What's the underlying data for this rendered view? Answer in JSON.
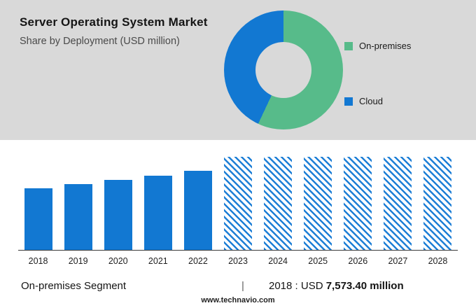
{
  "colors": {
    "header_bg": "#d9d9d9",
    "green": "#57bb8a",
    "blue": "#1278d2"
  },
  "header": {
    "title": "Server Operating System Market",
    "subtitle": "Share by Deployment (USD million)"
  },
  "chart_data": [
    {
      "type": "pie",
      "subtype": "donut",
      "title": "Share by Deployment (USD million)",
      "labels": [
        "On-premises",
        "Cloud"
      ],
      "values": [
        57,
        43
      ],
      "value_unit": "percent, estimated from arc angles",
      "colors": [
        "#57bb8a",
        "#1278d2"
      ],
      "legend_position": "right",
      "start_angle_deg": 0,
      "direction": "clockwise"
    },
    {
      "type": "bar",
      "categories": [
        "2018",
        "2019",
        "2020",
        "2021",
        "2022",
        "2023",
        "2024",
        "2025",
        "2026",
        "2027",
        "2028"
      ],
      "series": [
        {
          "name": "On-premises Segment (USD million)",
          "values": [
            7573.4,
            8050,
            8560,
            9080,
            9700,
            null,
            null,
            null,
            null,
            null,
            null
          ]
        }
      ],
      "labeled_point": {
        "category": "2018",
        "label": "USD 7,573.40 million"
      },
      "forecast_categories": [
        "2023",
        "2024",
        "2025",
        "2026",
        "2027",
        "2028"
      ],
      "forecast_style": "hatched full-height placeholder bars (values not disclosed)",
      "bar_color": "#1278d2",
      "xlabel": "",
      "ylabel": "",
      "grid": false,
      "note": "Only the 2018 value is labeled on screen; 2019-2022 values estimated from relative bar heights"
    }
  ],
  "footer": {
    "segment_label": "On-premises Segment",
    "separator": "|",
    "value_prefix": "2018 : USD",
    "value_bold": "7,573.40 million",
    "website": "www.technavio.com"
  }
}
